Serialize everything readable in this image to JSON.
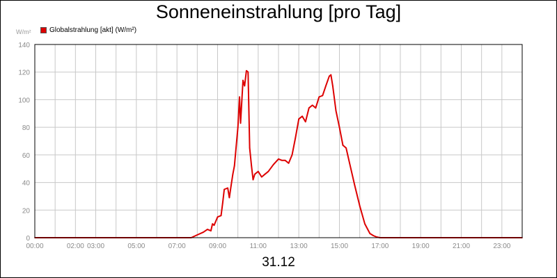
{
  "chart_data": {
    "type": "line",
    "title": "Sonneneinstrahlung [pro Tag]",
    "ylabel": "W/m²",
    "xlabel": "31.12",
    "ylim": [
      0,
      140
    ],
    "xlim": [
      0,
      24
    ],
    "grid": true,
    "legend_position": "top-left",
    "y_ticks": [
      "0",
      "20",
      "40",
      "60",
      "80",
      "100",
      "120",
      "140"
    ],
    "x_ticks": [
      "00:00",
      "02:00",
      "03:00",
      "05:00",
      "07:00",
      "09:00",
      "11:00",
      "13:00",
      "15:00",
      "17:00",
      "19:00",
      "21:00",
      "23:00"
    ],
    "series": [
      {
        "name": "Globalstrahlung [akt] (W/m²)",
        "color": "#dd0000",
        "x": [
          0,
          7.7,
          8.0,
          8.3,
          8.5,
          8.67,
          8.75,
          8.83,
          9.0,
          9.17,
          9.25,
          9.33,
          9.5,
          9.58,
          9.67,
          9.75,
          9.83,
          10.0,
          10.08,
          10.13,
          10.25,
          10.33,
          10.42,
          10.5,
          10.58,
          10.67,
          10.75,
          10.83,
          11.0,
          11.17,
          11.33,
          11.5,
          11.75,
          12.0,
          12.17,
          12.33,
          12.5,
          12.67,
          12.83,
          13.0,
          13.17,
          13.33,
          13.5,
          13.67,
          13.83,
          14.0,
          14.17,
          14.33,
          14.5,
          14.58,
          14.67,
          14.83,
          15.0,
          15.17,
          15.33,
          15.5,
          15.75,
          16.0,
          16.25,
          16.5,
          16.67,
          16.83,
          17.0,
          17.25,
          24
        ],
        "y": [
          0,
          0,
          2,
          4,
          6,
          5,
          10,
          9,
          15,
          16,
          25,
          35,
          36,
          29,
          38,
          46,
          52,
          80,
          102,
          83,
          114,
          110,
          121,
          120,
          65,
          52,
          42,
          46,
          48,
          44,
          46,
          48,
          53,
          57,
          56,
          56,
          54,
          60,
          72,
          86,
          88,
          84,
          94,
          96,
          94,
          102,
          103,
          110,
          117,
          118,
          110,
          92,
          80,
          67,
          65,
          54,
          38,
          23,
          10,
          3,
          1.5,
          0.5,
          0,
          0,
          0
        ]
      }
    ]
  }
}
